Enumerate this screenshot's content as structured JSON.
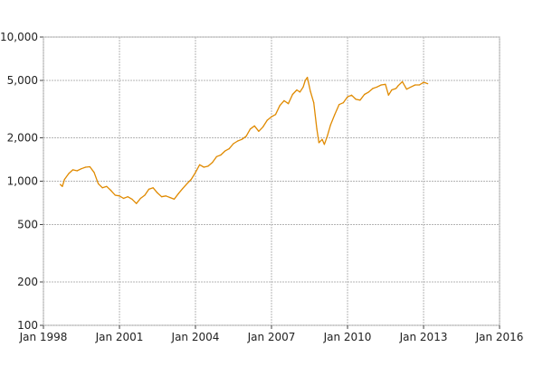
{
  "chart_data": {
    "type": "line",
    "title": "",
    "xlabel": "",
    "ylabel": "",
    "y_scale": "log",
    "ylim": [
      100,
      10000
    ],
    "xlim": [
      "1998-01-01",
      "2016-01-01"
    ],
    "grid": true,
    "legend": "none",
    "x_ticks": [
      {
        "date": "1998-01-01",
        "label": "Jan 1998"
      },
      {
        "date": "2001-01-01",
        "label": "Jan 2001"
      },
      {
        "date": "2004-01-01",
        "label": "Jan 2004"
      },
      {
        "date": "2007-01-01",
        "label": "Jan 2007"
      },
      {
        "date": "2010-01-01",
        "label": "Jan 2010"
      },
      {
        "date": "2013-01-01",
        "label": "Jan 2013"
      },
      {
        "date": "2016-01-01",
        "label": "Jan 2016"
      }
    ],
    "y_ticks": [
      {
        "value": 100,
        "label": "100"
      },
      {
        "value": 200,
        "label": "200"
      },
      {
        "value": 500,
        "label": "500"
      },
      {
        "value": 1000,
        "label": "1,000"
      },
      {
        "value": 2000,
        "label": "2,000"
      },
      {
        "value": 5000,
        "label": "5,000"
      },
      {
        "value": 10000,
        "label": "10,000"
      }
    ],
    "series": [
      {
        "color": "#e08a00",
        "points": [
          [
            "1998-09-01",
            950
          ],
          [
            "1998-10-01",
            920
          ],
          [
            "1998-11-01",
            1030
          ],
          [
            "1999-01-01",
            1130
          ],
          [
            "1999-03-01",
            1200
          ],
          [
            "1999-05-01",
            1180
          ],
          [
            "1999-07-01",
            1220
          ],
          [
            "1999-09-01",
            1250
          ],
          [
            "1999-11-01",
            1260
          ],
          [
            "2000-01-01",
            1150
          ],
          [
            "2000-03-01",
            960
          ],
          [
            "2000-05-01",
            900
          ],
          [
            "2000-07-01",
            920
          ],
          [
            "2000-09-01",
            860
          ],
          [
            "2000-11-01",
            800
          ],
          [
            "2001-01-01",
            790
          ],
          [
            "2001-03-01",
            760
          ],
          [
            "2001-05-01",
            780
          ],
          [
            "2001-07-01",
            750
          ],
          [
            "2001-09-01",
            700
          ],
          [
            "2001-11-01",
            760
          ],
          [
            "2002-01-01",
            800
          ],
          [
            "2002-03-01",
            880
          ],
          [
            "2002-05-01",
            900
          ],
          [
            "2002-07-01",
            830
          ],
          [
            "2002-09-01",
            780
          ],
          [
            "2002-11-01",
            790
          ],
          [
            "2003-01-01",
            770
          ],
          [
            "2003-03-01",
            750
          ],
          [
            "2003-05-01",
            820
          ],
          [
            "2003-07-01",
            890
          ],
          [
            "2003-09-01",
            960
          ],
          [
            "2003-11-01",
            1030
          ],
          [
            "2004-01-01",
            1150
          ],
          [
            "2004-03-01",
            1300
          ],
          [
            "2004-05-01",
            1250
          ],
          [
            "2004-07-01",
            1270
          ],
          [
            "2004-09-01",
            1350
          ],
          [
            "2004-11-01",
            1480
          ],
          [
            "2005-01-01",
            1520
          ],
          [
            "2005-03-01",
            1620
          ],
          [
            "2005-05-01",
            1680
          ],
          [
            "2005-07-01",
            1820
          ],
          [
            "2005-09-01",
            1900
          ],
          [
            "2005-11-01",
            1950
          ],
          [
            "2006-01-01",
            2050
          ],
          [
            "2006-03-01",
            2300
          ],
          [
            "2006-05-01",
            2420
          ],
          [
            "2006-07-01",
            2220
          ],
          [
            "2006-09-01",
            2380
          ],
          [
            "2006-11-01",
            2650
          ],
          [
            "2007-01-01",
            2800
          ],
          [
            "2007-03-01",
            2900
          ],
          [
            "2007-05-01",
            3350
          ],
          [
            "2007-07-01",
            3620
          ],
          [
            "2007-09-01",
            3450
          ],
          [
            "2007-11-01",
            4000
          ],
          [
            "2008-01-01",
            4300
          ],
          [
            "2008-02-15",
            4150
          ],
          [
            "2008-04-01",
            4500
          ],
          [
            "2008-05-01",
            5000
          ],
          [
            "2008-06-01",
            5250
          ],
          [
            "2008-07-15",
            4200
          ],
          [
            "2008-09-01",
            3500
          ],
          [
            "2008-10-15",
            2300
          ],
          [
            "2008-11-15",
            1850
          ],
          [
            "2009-01-01",
            1950
          ],
          [
            "2009-02-01",
            1800
          ],
          [
            "2009-03-15",
            2050
          ],
          [
            "2009-05-01",
            2450
          ],
          [
            "2009-07-01",
            2900
          ],
          [
            "2009-09-01",
            3400
          ],
          [
            "2009-11-01",
            3500
          ],
          [
            "2010-01-01",
            3850
          ],
          [
            "2010-03-01",
            3950
          ],
          [
            "2010-05-01",
            3700
          ],
          [
            "2010-07-01",
            3650
          ],
          [
            "2010-09-01",
            4000
          ],
          [
            "2010-11-01",
            4150
          ],
          [
            "2011-01-01",
            4400
          ],
          [
            "2011-03-01",
            4500
          ],
          [
            "2011-05-01",
            4650
          ],
          [
            "2011-07-01",
            4700
          ],
          [
            "2011-08-15",
            3950
          ],
          [
            "2011-10-01",
            4300
          ],
          [
            "2011-12-01",
            4400
          ],
          [
            "2012-01-01",
            4600
          ],
          [
            "2012-03-01",
            4900
          ],
          [
            "2012-05-01",
            4350
          ],
          [
            "2012-07-01",
            4500
          ],
          [
            "2012-09-01",
            4650
          ],
          [
            "2012-11-01",
            4650
          ],
          [
            "2013-01-01",
            4850
          ],
          [
            "2013-02-01",
            4800
          ],
          [
            "2013-03-01",
            4750
          ]
        ]
      }
    ]
  }
}
